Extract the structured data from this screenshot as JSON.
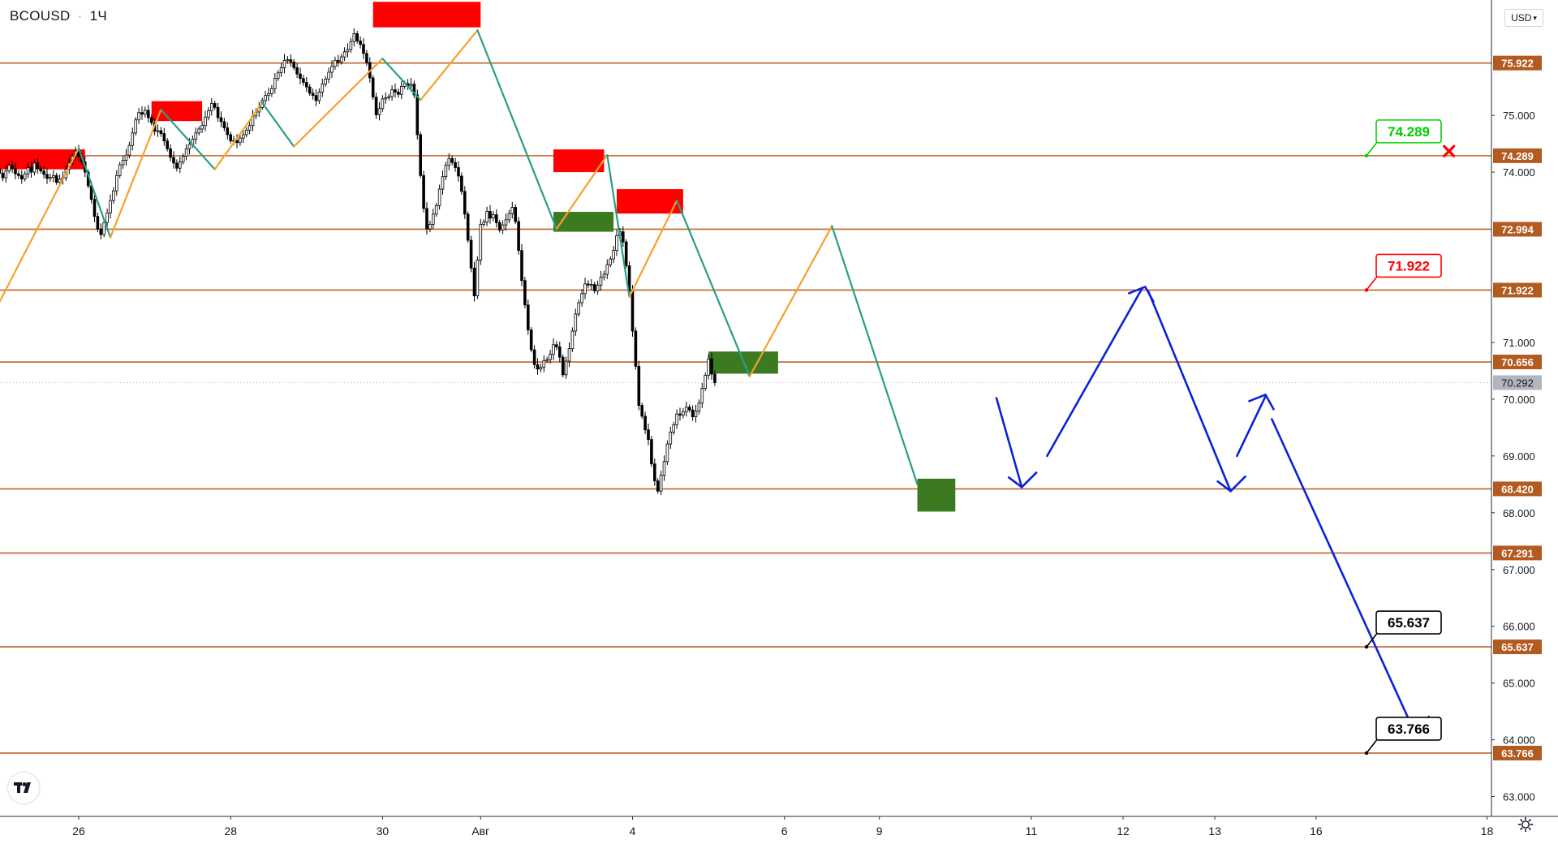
{
  "header": {
    "symbol": "BCOUSD",
    "separator": "·",
    "interval": "1Ч"
  },
  "currency_selector": {
    "label": "USD",
    "icon": "chevron-down-icon"
  },
  "colors": {
    "level_line": "#c0652a",
    "level_label_bg": "#b35a1f",
    "zigzag_up": "#f7a02b",
    "zigzag_down": "#269e86",
    "supply_zone": "#ff0000",
    "demand_zone": "#3c7a22",
    "forecast_arrow": "#0b22d6",
    "candle": "#000000",
    "target_green": "#00d000",
    "target_red": "#ff0000",
    "target_black": "#000000",
    "current_price_bg": "#b2b5be",
    "cross_marker": "#ff0000"
  },
  "chart_data": {
    "type": "candlestick",
    "symbol": "BCOUSD",
    "timeframe": "1Ч",
    "y_axis": {
      "ylim": [
        62.75,
        77.75
      ],
      "ticks": [
        "63.000",
        "64.000",
        "65.000",
        "66.000",
        "67.000",
        "68.000",
        "69.000",
        "70.000",
        "71.000",
        "74.000",
        "75.000"
      ]
    },
    "x_axis": {
      "ticks": [
        {
          "label": "26",
          "x": 0
        },
        {
          "label": "28",
          "x": 48
        },
        {
          "label": "30",
          "x": 96
        },
        {
          "label": "Авг",
          "x": 127
        },
        {
          "label": "4",
          "x": 175
        },
        {
          "label": "6",
          "x": 223
        },
        {
          "label": "9",
          "x": 253
        },
        {
          "label": "11",
          "x": 301
        },
        {
          "label": "12",
          "x": 330
        },
        {
          "label": "13",
          "x": 359
        },
        {
          "label": "16",
          "x": 391
        },
        {
          "label": "18",
          "x": 445
        }
      ]
    },
    "levels": [
      {
        "label": "75.922",
        "value": 75.922
      },
      {
        "label": "74.289",
        "value": 74.289
      },
      {
        "label": "72.994",
        "value": 72.994
      },
      {
        "label": "71.922",
        "value": 71.922
      },
      {
        "label": "70.656",
        "value": 70.656
      },
      {
        "label": "68.420",
        "value": 68.42
      },
      {
        "label": "67.291",
        "value": 67.291
      },
      {
        "label": "65.637",
        "value": 65.637
      },
      {
        "label": "63.766",
        "value": 63.766
      }
    ],
    "current_price": {
      "label": "70.292",
      "value": 70.292
    },
    "targets": [
      {
        "label": "74.289",
        "value": 74.289,
        "color": "green"
      },
      {
        "label": "71.922",
        "value": 71.922,
        "color": "red"
      },
      {
        "label": "65.637",
        "value": 65.637,
        "color": "black"
      },
      {
        "label": "63.766",
        "value": 63.766,
        "color": "black"
      }
    ],
    "cross_marker": {
      "x": 433,
      "value": 74.37
    },
    "supply_zones": [
      {
        "x0": -27,
        "x1": 2,
        "high": 74.4,
        "low": 74.05
      },
      {
        "x0": 23,
        "x1": 39,
        "high": 75.25,
        "low": 74.9
      },
      {
        "x0": 93,
        "x1": 127,
        "high": 77.0,
        "low": 76.55
      },
      {
        "x0": 150,
        "x1": 166,
        "high": 74.4,
        "low": 74.0
      },
      {
        "x0": 170,
        "x1": 191,
        "high": 73.7,
        "low": 73.27
      }
    ],
    "demand_zones": [
      {
        "x0": 150,
        "x1": 169,
        "high": 73.3,
        "low": 72.95
      },
      {
        "x0": 199,
        "x1": 221,
        "high": 70.84,
        "low": 70.45
      },
      {
        "x0": 265,
        "x1": 277,
        "high": 68.6,
        "low": 68.02
      }
    ],
    "zigzag": [
      {
        "x": -27,
        "y": 71.5
      },
      {
        "x": 0,
        "y": 74.42
      },
      {
        "x": 10,
        "y": 72.85
      },
      {
        "x": 26,
        "y": 75.1
      },
      {
        "x": 43,
        "y": 74.05
      },
      {
        "x": 58,
        "y": 75.22
      },
      {
        "x": 68,
        "y": 74.45
      },
      {
        "x": 96,
        "y": 76.0
      },
      {
        "x": 108,
        "y": 75.27
      },
      {
        "x": 126,
        "y": 76.5
      },
      {
        "x": 151,
        "y": 73.0
      },
      {
        "x": 167,
        "y": 74.3
      },
      {
        "x": 174,
        "y": 71.8
      },
      {
        "x": 189,
        "y": 73.5
      },
      {
        "x": 212,
        "y": 70.4
      },
      {
        "x": 238,
        "y": 73.05
      },
      {
        "x": 265,
        "y": 68.5
      }
    ],
    "candles": {
      "x_start": -27,
      "x_step": 1,
      "open_first": 74.1,
      "closes": [
        74.0,
        74.06,
        73.98,
        73.9,
        74.02,
        74.12,
        74.06,
        73.97,
        73.94,
        73.88,
        73.97,
        74.08,
        74.0,
        74.16,
        74.06,
        74.02,
        73.96,
        73.89,
        73.91,
        73.94,
        73.82,
        73.88,
        73.9,
        74.05,
        74.16,
        74.28,
        74.37,
        74.28,
        74.18,
        74.0,
        73.76,
        73.52,
        73.22,
        73.0,
        72.9,
        73.11,
        73.28,
        73.5,
        73.67,
        73.94,
        74.13,
        74.21,
        74.3,
        74.47,
        74.69,
        74.92,
        75.05,
        75.02,
        75.09,
        74.96,
        74.87,
        74.72,
        74.73,
        74.68,
        74.55,
        74.41,
        74.26,
        74.16,
        74.07,
        74.18,
        74.28,
        74.41,
        74.49,
        74.58,
        74.69,
        74.76,
        74.82,
        74.97,
        75.08,
        75.21,
        75.14,
        74.96,
        74.89,
        74.78,
        74.66,
        74.55,
        74.56,
        74.52,
        74.6,
        74.66,
        74.74,
        74.82,
        74.99,
        75.06,
        75.14,
        75.26,
        75.35,
        75.38,
        75.47,
        75.65,
        75.75,
        75.84,
        75.97,
        75.98,
        75.94,
        75.84,
        75.73,
        75.65,
        75.58,
        75.5,
        75.39,
        75.35,
        75.26,
        75.41,
        75.55,
        75.64,
        75.76,
        75.86,
        75.97,
        75.94,
        76.03,
        76.12,
        76.16,
        76.3,
        76.44,
        76.31,
        76.25,
        76.09,
        75.93,
        75.66,
        75.32,
        75.01,
        75.12,
        75.29,
        75.31,
        75.33,
        75.45,
        75.41,
        75.37,
        75.51,
        75.56,
        75.52,
        75.55,
        75.36,
        74.66,
        73.94,
        73.36,
        73.0,
        73.08,
        73.26,
        73.41,
        73.7,
        73.92,
        74.12,
        74.24,
        74.17,
        74.08,
        73.93,
        73.66,
        73.26,
        72.8,
        72.31,
        71.82,
        72.45,
        73.08,
        73.12,
        73.31,
        73.19,
        73.25,
        73.11,
        72.98,
        73.07,
        73.16,
        73.27,
        73.38,
        73.13,
        72.62,
        72.09,
        71.66,
        71.22,
        70.87,
        70.61,
        70.53,
        70.56,
        70.68,
        70.7,
        70.79,
        70.96,
        70.92,
        70.74,
        70.43,
        70.67,
        70.89,
        71.2,
        71.5,
        71.7,
        71.86,
        72.03,
        72.01,
        72.02,
        71.91,
        72.01,
        72.15,
        72.2,
        72.37,
        72.47,
        72.62,
        72.88,
        72.95,
        72.77,
        72.35,
        71.9,
        71.2,
        70.58,
        69.89,
        69.7,
        69.46,
        69.29,
        68.86,
        68.56,
        68.38,
        68.66,
        68.9,
        69.21,
        69.42,
        69.55,
        69.74,
        69.72,
        69.78,
        69.86,
        69.81,
        69.69,
        69.79,
        69.93,
        70.19,
        70.42,
        70.71,
        70.44,
        70.29
      ]
    },
    "forecast": [
      [
        {
          "x": 290,
          "y": 70.02
        },
        {
          "x": 298,
          "y": 68.45
        }
      ],
      [
        {
          "x": 306,
          "y": 69.0
        },
        {
          "x": 336,
          "y": 71.95
        }
      ],
      [
        {
          "x": 338,
          "y": 71.9
        },
        {
          "x": 364,
          "y": 68.38
        }
      ],
      [
        {
          "x": 366,
          "y": 69.0
        },
        {
          "x": 375,
          "y": 70.05
        }
      ],
      [
        {
          "x": 377,
          "y": 69.65
        },
        {
          "x": 422,
          "y": 64.15
        }
      ]
    ],
    "forecast_heads": [
      {
        "x": 298,
        "y": 68.45,
        "dir": "down"
      },
      {
        "x": 337,
        "y": 71.98,
        "dir": "up"
      },
      {
        "x": 364,
        "y": 68.38,
        "dir": "down"
      },
      {
        "x": 375,
        "y": 70.08,
        "dir": "up"
      },
      {
        "x": 422,
        "y": 64.15,
        "dir": "down"
      }
    ],
    "grid": false
  }
}
